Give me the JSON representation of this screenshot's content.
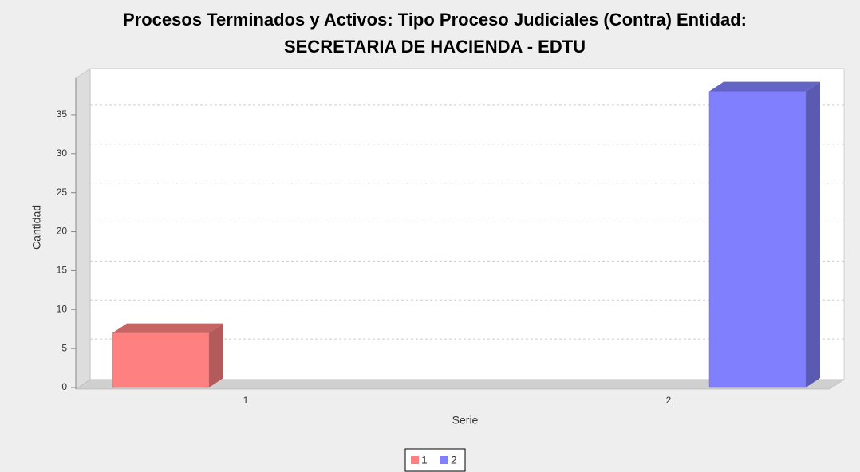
{
  "chart_data": {
    "type": "bar3d",
    "title": [
      "Procesos Terminados y Activos: Tipo Proceso Judiciales (Contra) Entidad:",
      "SECRETARIA DE HACIENDA - EDTU"
    ],
    "x_label": "Serie",
    "y_label": "Cantidad",
    "categories": [
      "1",
      "2"
    ],
    "series": [
      {
        "name": "1",
        "color": "#ff8080",
        "values": [
          7,
          null
        ]
      },
      {
        "name": "2",
        "color": "#8080ff",
        "values": [
          null,
          38
        ]
      }
    ],
    "ylim": [
      0,
      39.7
    ],
    "yticks": [
      0,
      5,
      10,
      15,
      20,
      25,
      30,
      35
    ],
    "grid": true,
    "legend": "bottom"
  }
}
